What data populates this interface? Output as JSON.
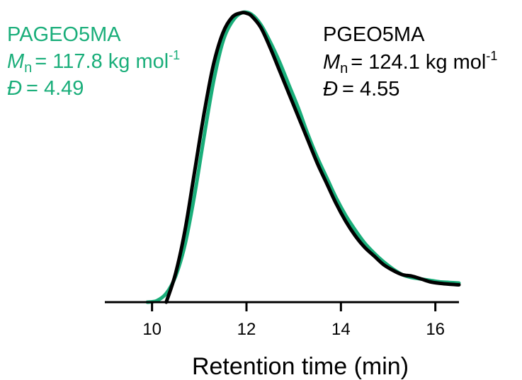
{
  "chart_data": {
    "type": "line",
    "xlabel": "Retention time (min)",
    "ylabel": "",
    "xlim": [
      9.0,
      16.5
    ],
    "ylim": [
      0,
      1.0
    ],
    "x_ticks": [
      "10",
      "12",
      "14",
      "16"
    ],
    "grid": false,
    "legend": "none",
    "series": [
      {
        "name": "PAGEO5MA",
        "color": "#1aae7a",
        "annotation": {
          "name": "PAGEO5MA",
          "mn_symbol": "M",
          "mn_sub": "n",
          "mn_value": "= 117.8 kg mol",
          "mn_unit_sup": "-1",
          "d_symbol": "Đ",
          "d_value": "= 4.49"
        },
        "x": [
          9.9,
          10.1,
          10.3,
          10.5,
          10.7,
          10.9,
          11.1,
          11.3,
          11.5,
          11.7,
          11.9,
          12.1,
          12.3,
          12.5,
          12.7,
          12.9,
          13.1,
          13.3,
          13.5,
          13.7,
          13.9,
          14.1,
          14.3,
          14.5,
          14.7,
          14.9,
          15.1,
          15.3,
          15.5,
          15.7,
          15.9,
          16.1,
          16.3,
          16.5
        ],
        "y": [
          0.0,
          0.005,
          0.03,
          0.09,
          0.2,
          0.37,
          0.57,
          0.76,
          0.9,
          0.97,
          1.0,
          0.995,
          0.96,
          0.9,
          0.83,
          0.75,
          0.67,
          0.58,
          0.5,
          0.43,
          0.36,
          0.3,
          0.25,
          0.205,
          0.17,
          0.14,
          0.115,
          0.095,
          0.085,
          0.08,
          0.075,
          0.07,
          0.068,
          0.066
        ]
      },
      {
        "name": "PGEO5MA",
        "color": "#000000",
        "annotation": {
          "name": "PGEO5MA",
          "mn_symbol": "M",
          "mn_sub": "n",
          "mn_value": "= 124.1 kg mol",
          "mn_unit_sup": "-1",
          "d_symbol": "Đ",
          "d_value": "= 4.55"
        },
        "x": [
          10.3,
          10.5,
          10.7,
          10.9,
          11.1,
          11.3,
          11.5,
          11.7,
          11.9,
          12.0,
          12.1,
          12.3,
          12.5,
          12.7,
          12.9,
          13.1,
          13.3,
          13.5,
          13.7,
          13.9,
          14.1,
          14.3,
          14.5,
          14.7,
          14.9,
          15.1,
          15.3,
          15.5,
          15.7,
          15.9,
          16.1,
          16.3,
          16.5
        ],
        "y": [
          0.0,
          0.1,
          0.25,
          0.45,
          0.65,
          0.82,
          0.93,
          0.985,
          1.0,
          0.998,
          0.99,
          0.95,
          0.88,
          0.8,
          0.72,
          0.64,
          0.56,
          0.48,
          0.41,
          0.34,
          0.28,
          0.23,
          0.19,
          0.16,
          0.13,
          0.11,
          0.095,
          0.09,
          0.08,
          0.07,
          0.065,
          0.062,
          0.06
        ]
      }
    ]
  }
}
